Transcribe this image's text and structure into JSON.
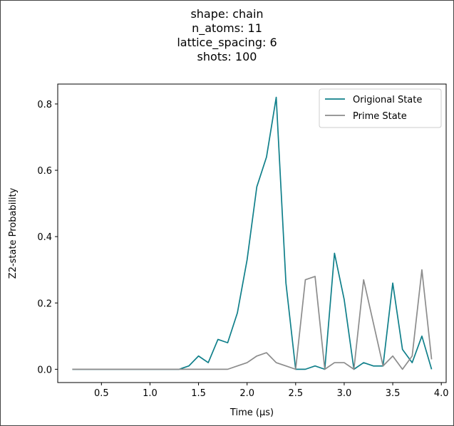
{
  "chart_data": {
    "type": "line",
    "title_lines": [
      "shape: chain",
      "n_atoms: 11",
      "lattice_spacing: 6",
      "shots: 100"
    ],
    "xlabel": "Time (μs)",
    "ylabel": "Z2-state Probability",
    "xlim": [
      0.05,
      4.05
    ],
    "ylim": [
      -0.04,
      0.86
    ],
    "x_ticks": [
      0.5,
      1.0,
      1.5,
      2.0,
      2.5,
      3.0,
      3.5,
      4.0
    ],
    "x_tick_labels": [
      "0.5",
      "1.0",
      "1.5",
      "2.0",
      "2.5",
      "3.0",
      "3.5",
      "4.0"
    ],
    "y_ticks": [
      0.0,
      0.2,
      0.4,
      0.6,
      0.8
    ],
    "y_tick_labels": [
      "0.0",
      "0.2",
      "0.4",
      "0.6",
      "0.8"
    ],
    "grid": false,
    "legend_position": "top-right",
    "x": [
      0.2,
      0.3,
      0.4,
      0.5,
      0.6,
      0.7,
      0.8,
      0.9,
      1.0,
      1.1,
      1.2,
      1.3,
      1.4,
      1.5,
      1.6,
      1.7,
      1.8,
      1.9,
      2.0,
      2.1,
      2.2,
      2.3,
      2.4,
      2.5,
      2.6,
      2.7,
      2.8,
      2.9,
      3.0,
      3.1,
      3.2,
      3.3,
      3.4,
      3.5,
      3.6,
      3.7,
      3.8,
      3.9
    ],
    "series": [
      {
        "name": "Origional State",
        "color": "#0f7f8a",
        "values": [
          0,
          0,
          0,
          0,
          0,
          0,
          0,
          0,
          0,
          0,
          0,
          0,
          0.01,
          0.04,
          0.02,
          0.09,
          0.08,
          0.17,
          0.33,
          0.55,
          0.64,
          0.82,
          0.26,
          0,
          0,
          0.01,
          0,
          0.35,
          0.21,
          0,
          0.02,
          0.01,
          0.01,
          0.26,
          0.06,
          0.02,
          0.1,
          0
        ]
      },
      {
        "name": "Prime State",
        "color": "#8c8c8c",
        "values": [
          0,
          0,
          0,
          0,
          0,
          0,
          0,
          0,
          0,
          0,
          0,
          0,
          0,
          0,
          0,
          0,
          0,
          0.01,
          0.02,
          0.04,
          0.05,
          0.02,
          0.01,
          0,
          0.27,
          0.28,
          0,
          0.02,
          0.02,
          0,
          0.27,
          0.14,
          0.01,
          0.04,
          0,
          0.04,
          0.3,
          0.03
        ]
      }
    ]
  }
}
